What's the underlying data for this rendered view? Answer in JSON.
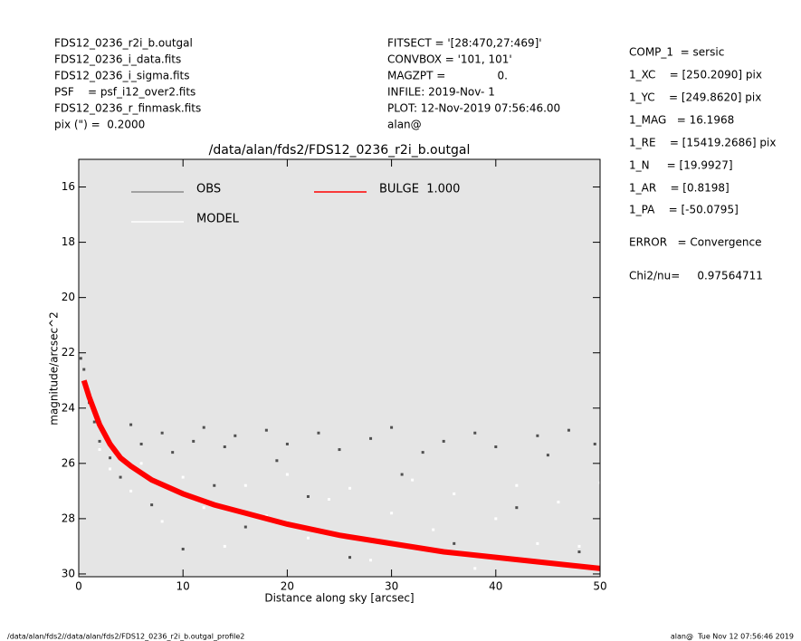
{
  "header": {
    "files": [
      "FDS12_0236_r2i_b.outgal",
      "FDS12_0236_i_data.fits",
      "FDS12_0236_i_sigma.fits",
      "PSF    = psf_i12_over2.fits",
      "FDS12_0236_r_finmask.fits",
      "pix (\") =  0.2000"
    ],
    "settings": [
      "FITSECT = '[28:470,27:469]'",
      "CONVBOX = '101, 101'",
      "MAGZPT =               0.",
      "INFILE: 2019-Nov- 1",
      "PLOT: 12-Nov-2019 07:56:46.00",
      "alan@"
    ],
    "params": [
      "COMP_1  = sersic",
      "1_XC    = [250.2090] pix",
      "1_YC    = [249.8620] pix",
      "1_MAG   = 16.1968",
      "1_RE    = [15419.2686] pix",
      "1_N     = [19.9927]",
      "1_AR    = [0.8198]",
      "1_PA    = [-50.0795]",
      "ERROR   = Convergence",
      "Chi2/nu=     0.97564711"
    ]
  },
  "footer": {
    "left": "/data/alan/fds2//data/alan/fds2/FDS12_0236_r2i_b.outgal_profile2",
    "right": "alan@  Tue Nov 12 07:56:46 2019"
  },
  "chart_data": {
    "type": "scatter",
    "title": "/data/alan/fds2/FDS12_0236_r2i_b.outgal",
    "x_label": "Distance along sky [arcsec]",
    "y_label": "magnitude/arcsec^2",
    "xlim": [
      0,
      50
    ],
    "xticks": [
      0,
      10,
      20,
      30,
      40,
      50
    ],
    "ylim": [
      30.1,
      15
    ],
    "yticks": [
      16,
      18,
      20,
      22,
      24,
      26,
      28,
      30
    ],
    "background": "#e5e5e5",
    "series": [
      {
        "name": "OBS",
        "color": "#505050",
        "legend_color": "#8c8c8c",
        "mode": "points",
        "x": [
          0.2,
          0.5,
          1,
          1.5,
          2,
          3,
          4,
          5,
          6,
          7,
          8,
          9,
          10,
          11,
          12,
          13,
          14,
          15,
          16,
          18,
          19,
          20,
          22,
          23,
          25,
          26,
          28,
          30,
          31,
          33,
          35,
          36,
          38,
          40,
          42,
          44,
          45,
          47,
          48,
          49.5
        ],
        "values": [
          22.2,
          22.6,
          23.8,
          24.5,
          25.2,
          25.8,
          26.5,
          24.6,
          25.3,
          27.5,
          24.9,
          25.6,
          29.1,
          25.2,
          24.7,
          26.8,
          25.4,
          25.0,
          28.3,
          24.8,
          25.9,
          25.3,
          27.2,
          24.9,
          25.5,
          29.4,
          25.1,
          24.7,
          26.4,
          25.6,
          25.2,
          28.9,
          24.9,
          25.4,
          27.6,
          25.0,
          25.7,
          24.8,
          29.2,
          25.3
        ]
      },
      {
        "name": "MODEL",
        "color": "#ffffff",
        "legend_color": "#ffffff",
        "mode": "points",
        "x": [
          2,
          3,
          5,
          6,
          8,
          10,
          12,
          14,
          16,
          18,
          20,
          22,
          24,
          26,
          28,
          30,
          32,
          34,
          36,
          38,
          40,
          42,
          44,
          46,
          48,
          50
        ],
        "values": [
          25.5,
          26.2,
          27.0,
          26.0,
          28.1,
          26.5,
          27.6,
          29.0,
          26.8,
          27.9,
          26.4,
          28.7,
          27.3,
          26.9,
          29.5,
          27.8,
          26.6,
          28.4,
          27.1,
          29.8,
          28.0,
          26.8,
          28.9,
          27.4,
          29.0,
          26.7
        ]
      },
      {
        "name": "BULGE  1.000",
        "color": "#ff0000",
        "legend_color": "#ff0000",
        "mode": "line",
        "x": [
          0.5,
          1,
          2,
          3,
          4,
          5,
          7,
          10,
          13,
          16,
          20,
          25,
          30,
          35,
          40,
          45,
          50
        ],
        "values": [
          23.0,
          23.6,
          24.6,
          25.3,
          25.8,
          26.1,
          26.6,
          27.1,
          27.5,
          27.8,
          28.2,
          28.6,
          28.9,
          29.2,
          29.4,
          29.6,
          29.8
        ]
      }
    ]
  }
}
